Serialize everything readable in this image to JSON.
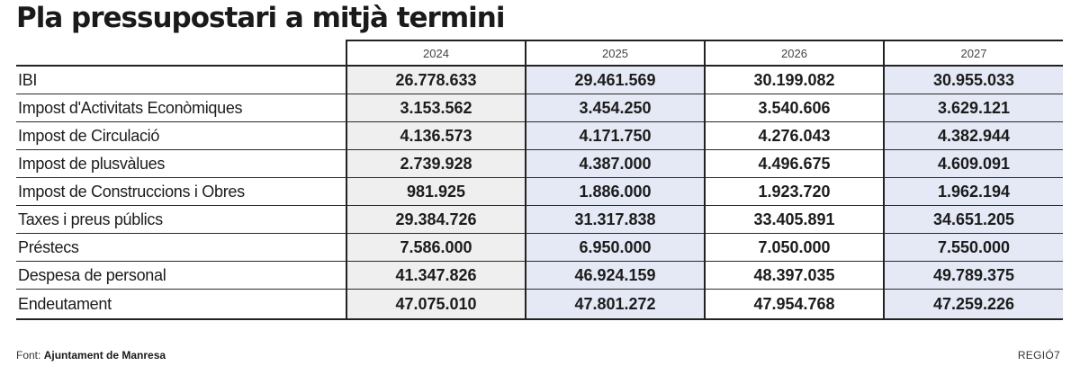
{
  "title": "Pla pressupostari a mitjà termini",
  "years": [
    "2024",
    "2025",
    "2026",
    "2027"
  ],
  "rows": [
    {
      "label": "IBI",
      "values": [
        "26.778.633",
        "29.461.569",
        "30.199.082",
        "30.955.033"
      ]
    },
    {
      "label": "Impost d'Activitats Econòmiques",
      "values": [
        "3.153.562",
        "3.454.250",
        "3.540.606",
        "3.629.121"
      ]
    },
    {
      "label": "Impost de Circulació",
      "values": [
        "4.136.573",
        "4.171.750",
        "4.276.043",
        "4.382.944"
      ]
    },
    {
      "label": "Impost de plusvàlues",
      "values": [
        "2.739.928",
        "4.387.000",
        "4.496.675",
        "4.609.091"
      ]
    },
    {
      "label": "Impost de Construccions i Obres",
      "values": [
        "981.925",
        "1.886.000",
        "1.923.720",
        "1.962.194"
      ]
    },
    {
      "label": "Taxes i preus públics",
      "values": [
        "29.384.726",
        "31.317.838",
        "33.405.891",
        "34.651.205"
      ]
    },
    {
      "label": "Préstecs",
      "values": [
        "7.586.000",
        "6.950.000",
        "7.050.000",
        "7.550.000"
      ]
    },
    {
      "label": "Despesa de personal",
      "values": [
        "41.347.826",
        "46.924.159",
        "48.397.035",
        "49.789.375"
      ]
    },
    {
      "label": "Endeutament",
      "values": [
        "47.075.010",
        "47.801.272",
        "47.954.768",
        "47.259.226"
      ]
    }
  ],
  "source": {
    "prefix": "Font:",
    "name": "Ajuntament de Manresa"
  },
  "brand": "REGIÓ7",
  "colors": {
    "col_2024": "#efefef",
    "col_2025": "#e4e9f5",
    "col_2026": "#ffffff",
    "col_2027": "#e4e9f5"
  }
}
